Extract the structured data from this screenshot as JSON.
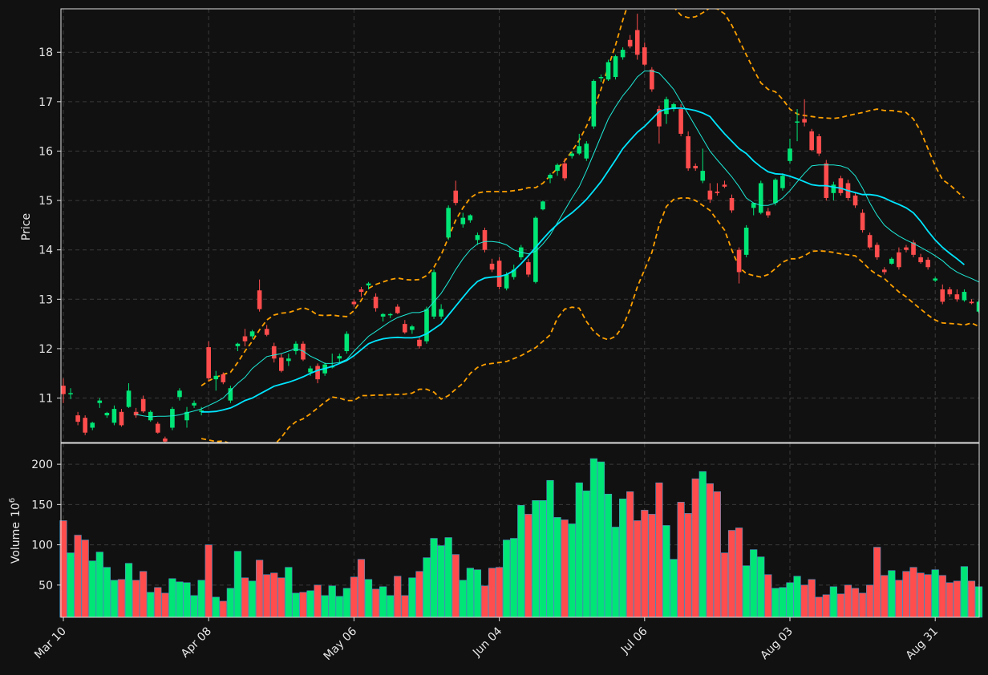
{
  "colors": {
    "background": "#111111",
    "up": "#00e676",
    "down": "#ff4d4d",
    "wick_up": "#00e676",
    "wick_down": "#ff4d4d",
    "ma_fast": "#1de9d6",
    "ma_slow": "#00e5ff",
    "bollinger": "#ffa000",
    "volume_edge": "#4a90c2"
  },
  "chart_data": {
    "type": "candlestick",
    "grid": true,
    "price_axis": {
      "label": "Price",
      "ylim": [
        10.1,
        18.88
      ],
      "ticks": [
        "11",
        "12",
        "13",
        "14",
        "15",
        "16",
        "17",
        "18"
      ]
    },
    "volume_axis": {
      "label": "Volume",
      "label_exponent": "10",
      "label_power": "6",
      "ylim": [
        10,
        226
      ],
      "ticks": [
        "50",
        "100",
        "150",
        "200"
      ]
    },
    "x_tick_labels": [
      "Mar 10",
      "Apr 08",
      "May 06",
      "Jun 04",
      "Jul 06",
      "Aug 03",
      "Aug 31"
    ],
    "x_tick_index": [
      0,
      20,
      40,
      60,
      80,
      100,
      120
    ],
    "candles": [
      [
        11.25,
        11.4,
        10.9,
        11.08
      ],
      [
        11.08,
        11.2,
        10.98,
        11.1
      ],
      [
        10.65,
        10.72,
        10.45,
        10.52
      ],
      [
        10.6,
        10.65,
        10.25,
        10.3
      ],
      [
        10.4,
        10.52,
        10.35,
        10.5
      ],
      [
        10.9,
        11.0,
        10.8,
        10.95
      ],
      [
        10.65,
        10.72,
        10.6,
        10.7
      ],
      [
        10.5,
        10.85,
        10.45,
        10.78
      ],
      [
        10.72,
        10.78,
        10.42,
        10.45
      ],
      [
        10.82,
        11.3,
        10.8,
        11.15
      ],
      [
        10.72,
        10.8,
        10.6,
        10.65
      ],
      [
        10.98,
        11.05,
        10.7,
        10.73
      ],
      [
        10.55,
        10.75,
        10.52,
        10.72
      ],
      [
        10.48,
        10.52,
        10.28,
        10.3
      ],
      [
        10.18,
        10.22,
        10.1,
        10.12
      ],
      [
        10.4,
        10.82,
        10.35,
        10.78
      ],
      [
        11.02,
        11.2,
        10.95,
        11.15
      ],
      [
        10.55,
        10.82,
        10.4,
        10.72
      ],
      [
        10.85,
        10.95,
        10.8,
        10.9
      ],
      [
        10.72,
        10.82,
        10.65,
        10.75
      ],
      [
        12.03,
        12.15,
        11.35,
        11.4
      ],
      [
        11.38,
        11.55,
        11.15,
        11.45
      ],
      [
        11.48,
        11.52,
        11.28,
        11.32
      ],
      [
        10.95,
        11.25,
        10.9,
        11.2
      ],
      [
        12.05,
        12.12,
        11.95,
        12.1
      ],
      [
        12.25,
        12.4,
        12.05,
        12.15
      ],
      [
        12.25,
        12.38,
        12.2,
        12.35
      ],
      [
        13.18,
        13.4,
        12.75,
        12.8
      ],
      [
        12.4,
        12.48,
        12.25,
        12.28
      ],
      [
        12.05,
        12.12,
        11.72,
        11.8
      ],
      [
        11.82,
        11.9,
        11.52,
        11.55
      ],
      [
        11.75,
        11.9,
        11.65,
        11.8
      ],
      [
        11.95,
        12.15,
        11.88,
        12.1
      ],
      [
        12.1,
        12.15,
        11.75,
        11.78
      ],
      [
        11.52,
        11.65,
        11.45,
        11.6
      ],
      [
        11.65,
        11.7,
        11.3,
        11.38
      ],
      [
        11.5,
        11.72,
        11.45,
        11.68
      ],
      [
        11.62,
        11.9,
        11.6,
        11.65
      ],
      [
        11.8,
        11.9,
        11.7,
        11.85
      ],
      [
        11.95,
        12.35,
        11.9,
        12.3
      ],
      [
        12.95,
        13.0,
        12.85,
        12.9
      ],
      [
        13.2,
        13.25,
        13.05,
        13.15
      ],
      [
        13.28,
        13.35,
        13.2,
        13.32
      ],
      [
        13.05,
        13.12,
        12.75,
        12.82
      ],
      [
        12.65,
        12.72,
        12.55,
        12.7
      ],
      [
        12.68,
        12.72,
        12.62,
        12.7
      ],
      [
        12.85,
        12.9,
        12.7,
        12.72
      ],
      [
        12.5,
        12.58,
        12.3,
        12.33
      ],
      [
        12.38,
        12.48,
        12.3,
        12.45
      ],
      [
        12.18,
        12.22,
        12.0,
        12.05
      ],
      [
        12.15,
        12.85,
        12.1,
        12.8
      ],
      [
        12.65,
        13.6,
        12.6,
        13.55
      ],
      [
        12.65,
        12.9,
        12.6,
        12.8
      ],
      [
        14.25,
        14.9,
        14.2,
        14.85
      ],
      [
        15.2,
        15.4,
        14.9,
        14.95
      ],
      [
        14.52,
        14.75,
        14.45,
        14.65
      ],
      [
        14.6,
        14.72,
        14.55,
        14.7
      ],
      [
        14.2,
        14.35,
        14.1,
        14.3
      ],
      [
        14.4,
        14.45,
        13.95,
        14.0
      ],
      [
        13.72,
        13.82,
        13.55,
        13.6
      ],
      [
        13.78,
        13.85,
        13.2,
        13.25
      ],
      [
        13.22,
        13.55,
        13.18,
        13.5
      ],
      [
        13.45,
        13.7,
        13.4,
        13.6
      ],
      [
        13.85,
        14.1,
        13.8,
        14.05
      ],
      [
        13.75,
        13.82,
        13.45,
        13.5
      ],
      [
        13.35,
        14.68,
        13.32,
        14.65
      ],
      [
        14.82,
        15.0,
        14.8,
        14.98
      ],
      [
        15.45,
        15.55,
        15.35,
        15.52
      ],
      [
        15.6,
        15.75,
        15.5,
        15.72
      ],
      [
        15.75,
        15.85,
        15.4,
        15.45
      ],
      [
        15.9,
        16.0,
        15.85,
        15.95
      ],
      [
        15.95,
        16.35,
        15.92,
        16.1
      ],
      [
        15.85,
        16.2,
        15.8,
        16.15
      ],
      [
        16.5,
        17.45,
        16.45,
        17.42
      ],
      [
        17.5,
        17.55,
        17.4,
        17.5
      ],
      [
        17.45,
        17.85,
        17.42,
        17.8
      ],
      [
        17.5,
        17.95,
        17.45,
        17.92
      ],
      [
        17.9,
        18.1,
        17.85,
        18.05
      ],
      [
        18.25,
        18.35,
        18.08,
        18.12
      ],
      [
        18.45,
        18.78,
        17.85,
        17.95
      ],
      [
        18.1,
        18.2,
        17.72,
        17.75
      ],
      [
        17.65,
        17.7,
        17.2,
        17.25
      ],
      [
        16.85,
        16.92,
        16.15,
        16.5
      ],
      [
        16.75,
        17.1,
        16.55,
        17.05
      ],
      [
        16.85,
        16.98,
        16.8,
        16.95
      ],
      [
        16.85,
        16.95,
        16.3,
        16.35
      ],
      [
        16.3,
        16.4,
        15.6,
        15.65
      ],
      [
        15.7,
        15.75,
        15.6,
        15.65
      ],
      [
        15.4,
        16.05,
        15.35,
        15.6
      ],
      [
        15.2,
        15.35,
        14.95,
        15.02
      ],
      [
        15.18,
        15.35,
        15.1,
        15.15
      ],
      [
        15.32,
        15.4,
        15.25,
        15.28
      ],
      [
        15.05,
        15.12,
        14.75,
        14.8
      ],
      [
        14.0,
        14.05,
        13.32,
        13.55
      ],
      [
        13.9,
        14.5,
        13.85,
        14.45
      ],
      [
        14.85,
        14.9,
        14.7,
        14.95
      ],
      [
        14.75,
        15.4,
        14.72,
        15.35
      ],
      [
        14.78,
        14.85,
        14.65,
        14.7
      ],
      [
        14.95,
        15.45,
        14.9,
        15.42
      ],
      [
        15.25,
        15.55,
        15.2,
        15.5
      ],
      [
        15.8,
        16.25,
        15.75,
        16.05
      ],
      [
        16.6,
        16.85,
        16.2,
        16.6
      ],
      [
        16.65,
        17.05,
        16.5,
        16.58
      ],
      [
        16.4,
        16.45,
        16.0,
        16.02
      ],
      [
        16.3,
        16.35,
        15.9,
        15.95
      ],
      [
        15.75,
        15.82,
        15.0,
        15.05
      ],
      [
        15.15,
        15.38,
        15.0,
        15.32
      ],
      [
        15.45,
        15.5,
        15.1,
        15.15
      ],
      [
        15.35,
        15.42,
        15.0,
        15.05
      ],
      [
        15.1,
        15.15,
        14.85,
        14.9
      ],
      [
        14.75,
        14.82,
        14.35,
        14.4
      ],
      [
        14.3,
        14.35,
        14.02,
        14.05
      ],
      [
        14.1,
        14.15,
        13.8,
        13.85
      ],
      [
        13.6,
        13.65,
        13.5,
        13.55
      ],
      [
        13.72,
        13.85,
        13.7,
        13.82
      ],
      [
        13.95,
        14.05,
        13.6,
        13.65
      ],
      [
        14.05,
        14.1,
        13.95,
        14.0
      ],
      [
        14.15,
        14.2,
        13.85,
        13.9
      ],
      [
        13.85,
        13.92,
        13.72,
        13.75
      ],
      [
        13.8,
        13.85,
        13.6,
        13.65
      ],
      [
        13.38,
        13.45,
        13.35,
        13.42
      ],
      [
        13.2,
        13.3,
        12.9,
        12.95
      ],
      [
        13.2,
        13.25,
        13.05,
        13.1
      ],
      [
        13.1,
        13.2,
        12.95,
        13.0
      ],
      [
        12.98,
        13.2,
        12.95,
        13.15
      ],
      [
        12.95,
        13.0,
        12.9,
        12.92
      ],
      [
        12.75,
        12.98,
        12.72,
        12.95
      ]
    ],
    "volume": [
      130,
      90,
      112,
      106,
      80,
      91,
      72,
      56,
      57,
      77,
      56,
      67,
      41,
      47,
      40,
      58,
      54,
      53,
      37,
      56,
      100,
      35,
      30,
      46,
      92,
      59,
      55,
      81,
      63,
      65,
      59,
      72,
      40,
      41,
      43,
      50,
      37,
      49,
      36,
      46,
      60,
      82,
      57,
      45,
      48,
      37,
      61,
      37,
      59,
      67,
      84,
      108,
      99,
      109,
      88,
      56,
      71,
      69,
      49,
      71,
      72,
      106,
      108,
      149,
      138,
      155,
      155,
      180,
      134,
      131,
      126,
      177,
      167,
      207,
      203,
      163,
      122,
      157,
      166,
      130,
      143,
      138,
      177,
      124,
      82,
      153,
      139,
      182,
      191,
      176,
      166,
      90,
      118,
      121,
      74,
      94,
      85,
      63,
      46,
      47,
      53,
      61,
      50,
      57,
      35,
      38,
      48,
      39,
      50,
      46,
      40,
      50,
      97,
      62,
      68,
      56,
      67,
      72,
      65,
      63,
      69,
      62,
      53,
      55,
      73,
      55,
      48
    ],
    "ma_fast": [
      null,
      null,
      null,
      null,
      null,
      null,
      null,
      null,
      null,
      null,
      10.67,
      10.64,
      10.62,
      10.63,
      10.63,
      10.64,
      10.66,
      10.7,
      10.74,
      10.78,
      10.85,
      10.92,
      11.0,
      11.15,
      11.3,
      11.42,
      11.6,
      11.72,
      11.84,
      11.87,
      11.9,
      11.95,
      12.0,
      11.95,
      11.85,
      11.78,
      11.7,
      11.7,
      11.72,
      11.78,
      11.95,
      12.1,
      12.25,
      12.35,
      12.45,
      12.55,
      12.63,
      12.68,
      12.73,
      12.73,
      12.78,
      12.95,
      13.12,
      13.35,
      13.6,
      13.82,
      14.0,
      14.12,
      14.17,
      14.17,
      14.15,
      14.1,
      14.0,
      13.95,
      13.92,
      13.97,
      14.12,
      14.3,
      14.55,
      14.8,
      15.05,
      15.28,
      15.6,
      15.95,
      16.3,
      16.65,
      16.9,
      17.12,
      17.3,
      17.5,
      17.62,
      17.62,
      17.58,
      17.42,
      17.25,
      17.0,
      16.75,
      16.5,
      16.25,
      16.0,
      15.82,
      15.65,
      15.48,
      15.28,
      15.05,
      14.95,
      14.9,
      14.9,
      14.95,
      15.05,
      15.2,
      15.38,
      15.55,
      15.7,
      15.72,
      15.72,
      15.72,
      15.7,
      15.65,
      15.5,
      15.25,
      14.95,
      14.7,
      14.5,
      14.38,
      14.28,
      14.2,
      14.13,
      14.05,
      13.97,
      13.88,
      13.78,
      13.65,
      13.55,
      13.48,
      13.42,
      13.35
    ],
    "ma_slow": [
      null,
      null,
      null,
      null,
      null,
      null,
      null,
      null,
      null,
      null,
      null,
      null,
      null,
      null,
      null,
      null,
      null,
      null,
      null,
      10.72,
      10.72,
      10.73,
      10.76,
      10.8,
      10.87,
      10.95,
      11.0,
      11.08,
      11.16,
      11.24,
      11.28,
      11.32,
      11.37,
      11.43,
      11.5,
      11.56,
      11.6,
      11.64,
      11.7,
      11.76,
      11.86,
      11.98,
      12.1,
      12.16,
      12.2,
      12.22,
      12.23,
      12.22,
      12.22,
      12.24,
      12.3,
      12.4,
      12.5,
      12.68,
      12.86,
      13.04,
      13.22,
      13.36,
      13.43,
      13.45,
      13.46,
      13.5,
      13.58,
      13.72,
      13.88,
      14.05,
      14.22,
      14.38,
      14.52,
      14.64,
      14.75,
      14.88,
      15.02,
      15.2,
      15.38,
      15.6,
      15.82,
      16.05,
      16.22,
      16.38,
      16.5,
      16.65,
      16.8,
      16.85,
      16.87,
      16.87,
      16.85,
      16.82,
      16.77,
      16.7,
      16.52,
      16.35,
      16.2,
      16.05,
      15.95,
      15.8,
      15.68,
      15.58,
      15.54,
      15.53,
      15.49,
      15.44,
      15.38,
      15.32,
      15.3,
      15.3,
      15.27,
      15.25,
      15.2,
      15.16,
      15.12,
      15.12,
      15.1,
      15.05,
      14.98,
      14.92,
      14.85,
      14.75,
      14.58,
      14.38,
      14.2,
      14.05,
      13.93,
      13.82,
      13.7
    ],
    "boll_upper": [
      null,
      null,
      null,
      null,
      null,
      null,
      null,
      null,
      null,
      null,
      null,
      null,
      null,
      null,
      null,
      null,
      null,
      null,
      null,
      11.25,
      11.35,
      11.42,
      11.48,
      11.52,
      11.72,
      11.95,
      12.15,
      12.38,
      12.58,
      12.68,
      12.72,
      12.73,
      12.78,
      12.83,
      12.78,
      12.68,
      12.67,
      12.68,
      12.66,
      12.65,
      12.77,
      12.98,
      13.22,
      13.3,
      13.35,
      13.4,
      13.43,
      13.4,
      13.39,
      13.4,
      13.48,
      13.65,
      13.9,
      14.25,
      14.6,
      14.85,
      15.05,
      15.15,
      15.18,
      15.18,
      15.18,
      15.18,
      15.2,
      15.22,
      15.26,
      15.26,
      15.35,
      15.5,
      15.65,
      15.8,
      16.0,
      16.22,
      16.5,
      16.85,
      17.25,
      17.7,
      18.15,
      18.65,
      19.1,
      19.4,
      19.5,
      19.55,
      19.4,
      19.2,
      18.92,
      18.75,
      18.7,
      18.72,
      18.8,
      18.9,
      18.88,
      18.78,
      18.55,
      18.25,
      17.95,
      17.65,
      17.38,
      17.25,
      17.2,
      17.05,
      16.85,
      16.75,
      16.72,
      16.7,
      16.68,
      16.67,
      16.66,
      16.68,
      16.72,
      16.75,
      16.78,
      16.82,
      16.85,
      16.82,
      16.82,
      16.8,
      16.78,
      16.65,
      16.4,
      16.05,
      15.7,
      15.42,
      15.32,
      15.18,
      15.05
    ],
    "boll_lower": [
      null,
      null,
      null,
      null,
      null,
      null,
      null,
      null,
      null,
      null,
      null,
      null,
      null,
      null,
      null,
      null,
      null,
      null,
      null,
      10.18,
      10.15,
      10.12,
      10.13,
      10.08,
      10.02,
      9.95,
      9.92,
      9.93,
      9.98,
      10.05,
      10.2,
      10.4,
      10.52,
      10.58,
      10.68,
      10.8,
      10.92,
      11.02,
      11.0,
      10.95,
      10.95,
      11.05,
      11.05,
      11.06,
      11.06,
      11.07,
      11.07,
      11.08,
      11.1,
      11.18,
      11.18,
      11.12,
      10.98,
      11.05,
      11.18,
      11.3,
      11.5,
      11.62,
      11.68,
      11.7,
      11.72,
      11.74,
      11.8,
      11.86,
      11.94,
      12.02,
      12.15,
      12.28,
      12.62,
      12.8,
      12.84,
      12.82,
      12.55,
      12.35,
      12.23,
      12.18,
      12.25,
      12.45,
      12.8,
      13.25,
      13.6,
      13.95,
      14.5,
      14.88,
      15.02,
      15.05,
      15.05,
      15.0,
      14.9,
      14.8,
      14.6,
      14.4,
      14.0,
      13.65,
      13.52,
      13.48,
      13.45,
      13.5,
      13.62,
      13.75,
      13.82,
      13.82,
      13.88,
      13.97,
      13.98,
      13.97,
      13.95,
      13.92,
      13.9,
      13.88,
      13.75,
      13.6,
      13.5,
      13.42,
      13.28,
      13.15,
      13.05,
      12.92,
      12.8,
      12.68,
      12.58,
      12.52,
      12.51,
      12.5,
      12.48,
      12.52,
      12.45,
      12.43
    ]
  }
}
